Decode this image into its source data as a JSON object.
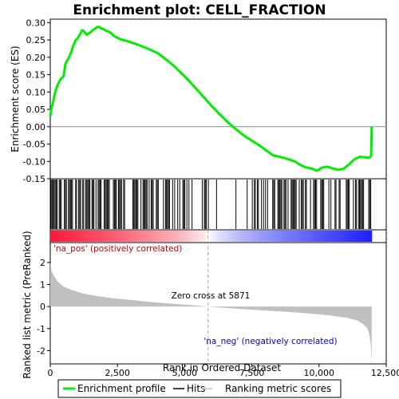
{
  "chart_data": [
    {
      "type": "line",
      "title": "Enrichment plot: CELL_FRACTION",
      "ylabel": "Enrichment score (ES)",
      "xlim": [
        0,
        12500
      ],
      "ylim": [
        -0.15,
        0.31
      ],
      "yticks": [
        -0.15,
        -0.1,
        -0.05,
        0.0,
        0.05,
        0.1,
        0.15,
        0.2,
        0.25,
        0.3
      ],
      "ytick_labels": [
        "-0.15",
        "-0.10",
        "-0.05",
        "0.00",
        "0.05",
        "0.10",
        "0.15",
        "0.20",
        "0.25",
        "0.30"
      ],
      "color": "#00ee00",
      "series": [
        {
          "name": "Enrichment profile",
          "x": [
            0,
            40,
            100,
            170,
            250,
            330,
            420,
            500,
            560,
            620,
            700,
            780,
            860,
            950,
            1020,
            1100,
            1180,
            1240,
            1300,
            1360,
            1420,
            1500,
            1580,
            1660,
            1740,
            1800,
            1860,
            1920,
            2000,
            2080,
            2160,
            2250,
            2400,
            2550,
            2700,
            2850,
            3000,
            3200,
            3400,
            3600,
            3800,
            4000,
            4200,
            4500,
            4800,
            5100,
            5400,
            5700,
            6000,
            6300,
            6600,
            6900,
            7200,
            7500,
            7800,
            8100,
            8300,
            8500,
            8700,
            8900,
            9100,
            9300,
            9500,
            9700,
            9800,
            9900,
            10000,
            10100,
            10300,
            10500,
            10700,
            10900,
            11100,
            11300,
            11500,
            11700,
            11850,
            11940,
            11960
          ],
          "y": [
            0.03,
            0.05,
            0.07,
            0.095,
            0.115,
            0.13,
            0.14,
            0.145,
            0.18,
            0.19,
            0.2,
            0.215,
            0.235,
            0.25,
            0.255,
            0.265,
            0.278,
            0.276,
            0.27,
            0.265,
            0.268,
            0.272,
            0.278,
            0.282,
            0.287,
            0.288,
            0.285,
            0.283,
            0.28,
            0.276,
            0.275,
            0.27,
            0.26,
            0.254,
            0.25,
            0.247,
            0.243,
            0.238,
            0.232,
            0.226,
            0.219,
            0.212,
            0.2,
            0.182,
            0.16,
            0.137,
            0.112,
            0.086,
            0.06,
            0.036,
            0.013,
            -0.007,
            -0.025,
            -0.04,
            -0.055,
            -0.072,
            -0.083,
            -0.086,
            -0.09,
            -0.095,
            -0.1,
            -0.11,
            -0.117,
            -0.12,
            -0.123,
            -0.127,
            -0.124,
            -0.118,
            -0.115,
            -0.12,
            -0.124,
            -0.122,
            -0.11,
            -0.095,
            -0.087,
            -0.088,
            -0.09,
            -0.085,
            0.0
          ]
        }
      ]
    },
    {
      "type": "line",
      "xlabel": "Rank in Ordered Dataset",
      "ylabel": "Ranked list metric (PreRanked)",
      "xlim": [
        0,
        12500
      ],
      "ylim": [
        -2.6,
        2.9
      ],
      "xticks": [
        0,
        2500,
        5000,
        7500,
        10000,
        12500
      ],
      "xtick_labels": [
        "0",
        "2,500",
        "5,000",
        "7,500",
        "10,000",
        "12,500"
      ],
      "yticks": [
        -2,
        -1,
        0,
        1,
        2
      ],
      "ytick_labels": [
        "-2",
        "-1",
        "0",
        "1",
        "2"
      ],
      "fill_color": "#c0c0c0",
      "series": [
        {
          "name": "Ranking metric scores",
          "x": [
            0,
            50,
            150,
            300,
            500,
            800,
            1200,
            1700,
            2300,
            3000,
            3800,
            4600,
            5400,
            5871,
            6500,
            7200,
            8000,
            8800,
            9600,
            10400,
            11000,
            11400,
            11650,
            11800,
            11880,
            11930,
            11960
          ],
          "y": [
            2.0,
            1.6,
            1.35,
            1.1,
            0.9,
            0.75,
            0.6,
            0.48,
            0.38,
            0.3,
            0.2,
            0.12,
            0.05,
            0.0,
            -0.06,
            -0.12,
            -0.18,
            -0.24,
            -0.31,
            -0.4,
            -0.5,
            -0.62,
            -0.8,
            -1.0,
            -1.3,
            -1.8,
            -2.6
          ]
        }
      ],
      "annotations": [
        "'na_pos' (positively correlated)",
        "Zero cross at 5871",
        "'na_neg' (negatively correlated)"
      ],
      "zero_cross": 5871
    }
  ],
  "legend": {
    "items": [
      {
        "label": "Enrichment profile",
        "color": "#00ee00"
      },
      {
        "label": "Hits",
        "color": "#000000"
      },
      {
        "label": "Ranking metric scores",
        "color": "#c0c0c0"
      }
    ]
  }
}
